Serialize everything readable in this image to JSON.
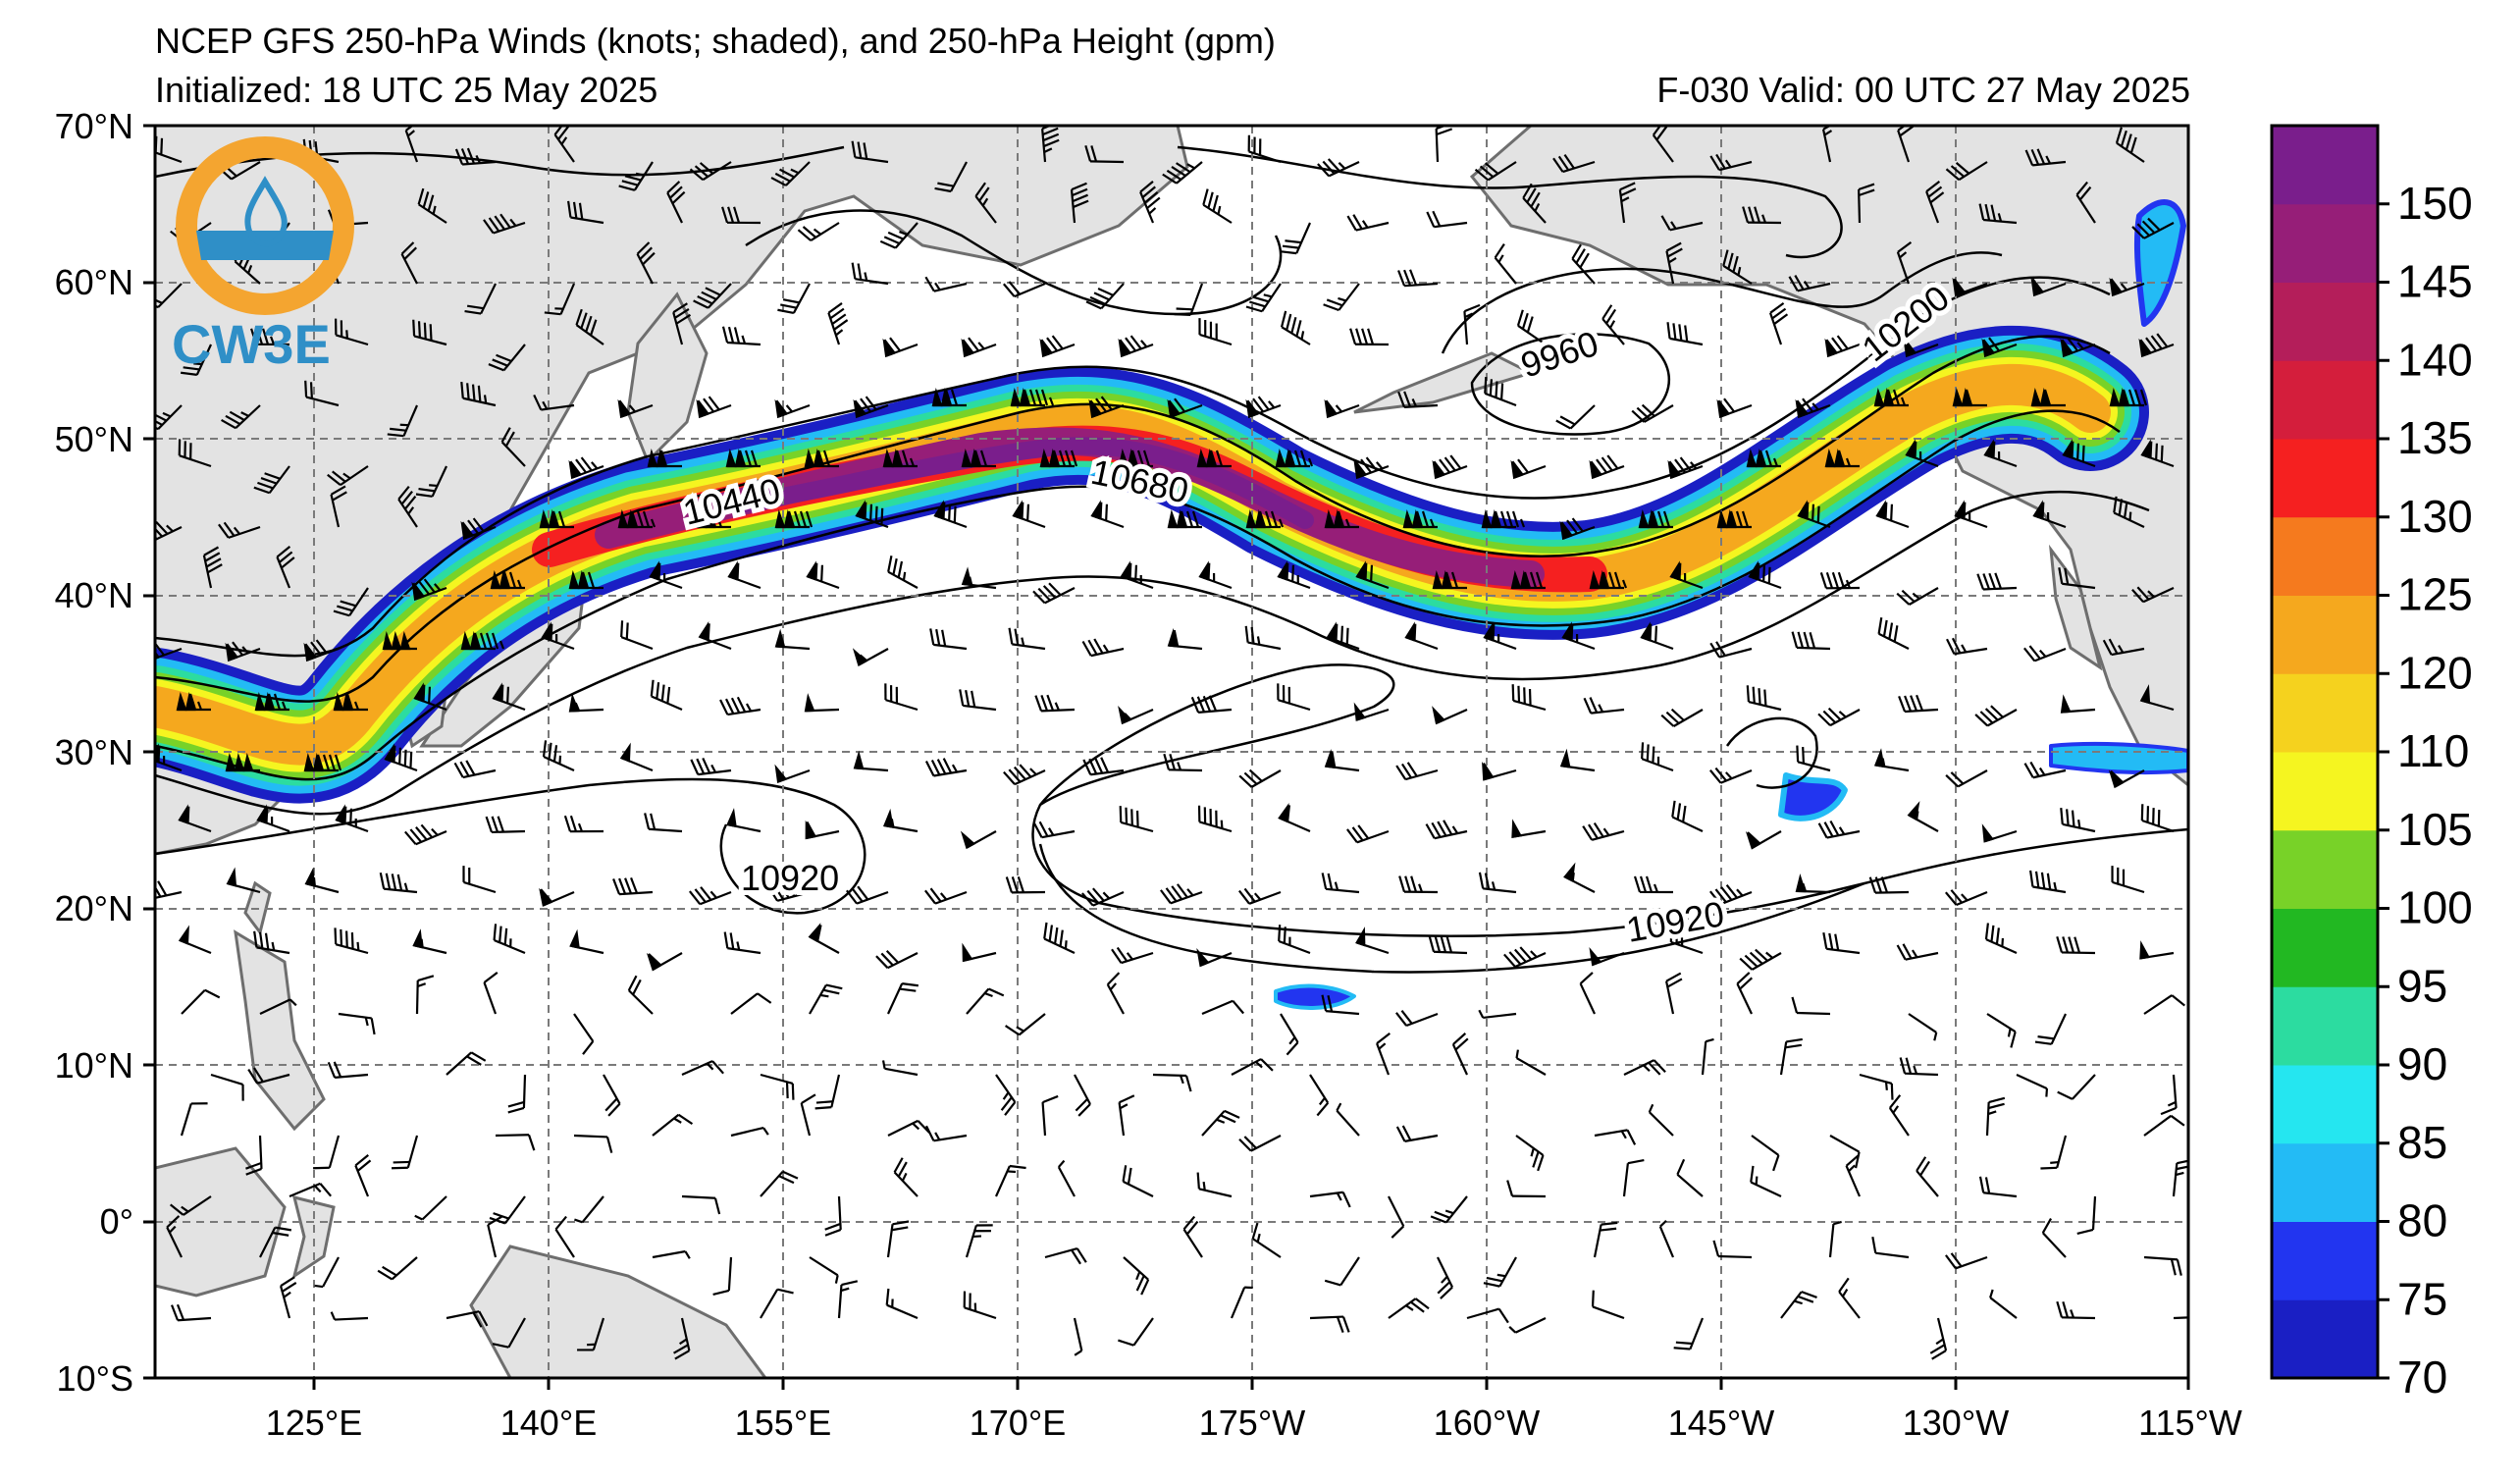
{
  "header": {
    "title": "NCEP GFS 250-hPa Winds (knots; shaded), and 250-hPa Height (gpm)",
    "initialized": "Initialized: 18 UTC 25 May 2025",
    "valid": "F-030  Valid: 00 UTC 27 May 2025"
  },
  "logo": {
    "text": "CW3E",
    "colors": {
      "ring_orange": "#f4a530",
      "ring_blue": "#2f8fc7",
      "text_blue": "#2f8fc7"
    }
  },
  "axes": {
    "lat_labels": [
      "70°N",
      "60°N",
      "50°N",
      "40°N",
      "30°N",
      "20°N",
      "10°N",
      "0°",
      "10°S"
    ],
    "lon_labels": [
      "125°E",
      "140°E",
      "155°E",
      "170°E",
      "175°W",
      "160°W",
      "145°W",
      "130°W",
      "115°W"
    ],
    "lat_range": [
      -10,
      70
    ],
    "lon_range_east": [
      115,
      245
    ],
    "gridlines": true
  },
  "contours": {
    "labels": [
      "10440",
      "10680",
      "9960",
      "10200",
      "10920",
      "10920"
    ],
    "color": "#000000"
  },
  "colorbar": {
    "tick_labels": [
      "70",
      "75",
      "80",
      "85",
      "90",
      "95",
      "100",
      "105",
      "110",
      "120",
      "125",
      "130",
      "135",
      "140",
      "145",
      "150"
    ],
    "bins": [
      {
        "from": 70,
        "color": "#1a1fc4"
      },
      {
        "from": 75,
        "color": "#2235f0"
      },
      {
        "from": 80,
        "color": "#23bbf5"
      },
      {
        "from": 85,
        "color": "#25e6f0"
      },
      {
        "from": 90,
        "color": "#2cdca0"
      },
      {
        "from": 95,
        "color": "#22b822"
      },
      {
        "from": 100,
        "color": "#78d228"
      },
      {
        "from": 105,
        "color": "#f5f520"
      },
      {
        "from": 110,
        "color": "#f5d21e"
      },
      {
        "from": 120,
        "color": "#f5a81e"
      },
      {
        "from": 125,
        "color": "#f57a1e"
      },
      {
        "from": 130,
        "color": "#f52020"
      },
      {
        "from": 135,
        "color": "#d41e3c"
      },
      {
        "from": 140,
        "color": "#b41e5a"
      },
      {
        "from": 145,
        "color": "#961e78"
      },
      {
        "from": 150,
        "color": "#7a1e8c"
      }
    ]
  }
}
